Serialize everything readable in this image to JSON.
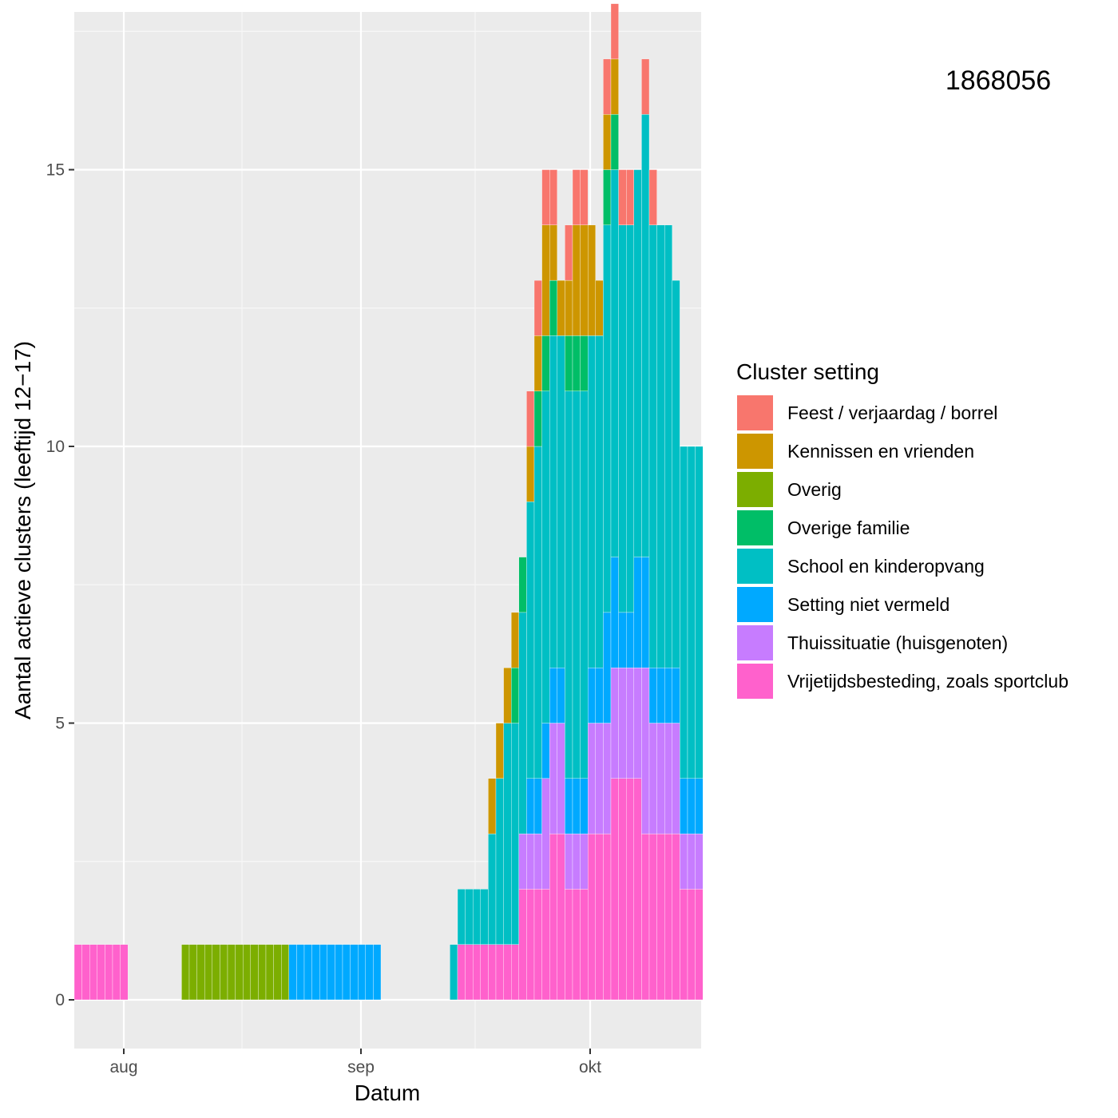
{
  "chart_data": {
    "type": "bar",
    "stacked": true,
    "xlabel": "Datum",
    "ylabel": "Aantal actieve clusters (leeftijd 12−17)",
    "annotation": "1868056",
    "x_tick_labels": [
      "aug",
      "sep",
      "okt"
    ],
    "y_ticks": [
      0,
      5,
      10,
      15
    ],
    "legend_title": "Cluster setting",
    "legend_position": "right",
    "grid": true,
    "categories": [
      "07-26",
      "07-27",
      "07-28",
      "07-29",
      "07-30",
      "07-31",
      "07-32",
      "08-02",
      "08-03",
      "08-04",
      "08-05",
      "08-06",
      "08-07",
      "08-08",
      "08-09",
      "08-10",
      "08-11",
      "08-12",
      "08-13",
      "08-14",
      "08-15",
      "08-16",
      "08-17",
      "08-18",
      "08-19",
      "08-20",
      "08-21",
      "08-22",
      "08-23",
      "08-24",
      "08-25",
      "08-26",
      "08-27",
      "08-28",
      "08-29",
      "08-30",
      "08-31",
      "09-01",
      "09-02",
      "09-03",
      "09-04",
      "09-05",
      "09-06",
      "09-07",
      "09-08",
      "09-09",
      "09-10",
      "09-11",
      "09-12",
      "09-13",
      "09-14",
      "09-15",
      "09-16",
      "09-17",
      "09-18",
      "09-19",
      "09-20",
      "09-21",
      "09-22",
      "09-23",
      "09-24",
      "09-25",
      "09-26",
      "09-27",
      "09-28",
      "09-29",
      "09-30",
      "10-01",
      "10-02",
      "10-03",
      "10-04",
      "10-05",
      "10-06",
      "10-07",
      "10-08",
      "10-09",
      "10-10",
      "10-11",
      "10-12",
      "10-13",
      "10-14",
      "10-15"
    ],
    "series": [
      {
        "name": "Feest / verjaardag / borrel",
        "color": "#F8766D",
        "values": [
          0,
          0,
          0,
          0,
          0,
          0,
          0,
          0,
          0,
          0,
          0,
          0,
          0,
          0,
          0,
          0,
          0,
          0,
          0,
          0,
          0,
          0,
          0,
          0,
          0,
          0,
          0,
          0,
          0,
          0,
          0,
          0,
          0,
          0,
          0,
          0,
          0,
          0,
          0,
          0,
          0,
          0,
          0,
          0,
          0,
          0,
          0,
          0,
          0,
          0,
          0,
          0,
          0,
          0,
          0,
          0,
          0,
          0,
          0,
          1,
          1,
          1,
          1,
          0,
          1,
          1,
          1,
          0,
          0,
          1,
          1,
          1,
          1,
          0,
          1,
          1,
          0,
          0,
          0,
          0,
          0,
          0
        ]
      },
      {
        "name": "Kennissen en vrienden",
        "color": "#CD9600",
        "values": [
          0,
          0,
          0,
          0,
          0,
          0,
          0,
          0,
          0,
          0,
          0,
          0,
          0,
          0,
          0,
          0,
          0,
          0,
          0,
          0,
          0,
          0,
          0,
          0,
          0,
          0,
          0,
          0,
          0,
          0,
          0,
          0,
          0,
          0,
          0,
          0,
          0,
          0,
          0,
          0,
          0,
          0,
          0,
          0,
          0,
          0,
          0,
          0,
          0,
          0,
          0,
          0,
          0,
          0,
          1,
          1,
          1,
          1,
          0,
          1,
          1,
          2,
          1,
          1,
          1,
          2,
          2,
          2,
          1,
          1,
          1,
          0,
          0,
          0,
          0,
          0,
          0,
          0,
          0,
          0,
          0,
          0
        ]
      },
      {
        "name": "Overig",
        "color": "#7CAE00",
        "values": [
          0,
          0,
          0,
          0,
          0,
          0,
          0,
          0,
          0,
          0,
          0,
          0,
          0,
          0,
          1,
          1,
          1,
          1,
          1,
          1,
          1,
          1,
          1,
          1,
          1,
          1,
          1,
          1,
          0,
          0,
          0,
          0,
          0,
          0,
          0,
          0,
          0,
          0,
          0,
          0,
          0,
          0,
          0,
          0,
          0,
          0,
          0,
          0,
          0,
          0,
          0,
          0,
          0,
          0,
          0,
          0,
          0,
          0,
          0,
          0,
          0,
          0,
          0,
          0,
          0,
          0,
          0,
          0,
          0,
          0,
          0,
          0,
          0,
          0,
          0,
          0,
          0,
          0,
          0,
          0,
          0,
          0
        ]
      },
      {
        "name": "Overige familie",
        "color": "#00BE67",
        "values": [
          0,
          0,
          0,
          0,
          0,
          0,
          0,
          0,
          0,
          0,
          0,
          0,
          0,
          0,
          0,
          0,
          0,
          0,
          0,
          0,
          0,
          0,
          0,
          0,
          0,
          0,
          0,
          0,
          0,
          0,
          0,
          0,
          0,
          0,
          0,
          0,
          0,
          0,
          0,
          0,
          0,
          0,
          0,
          0,
          0,
          0,
          0,
          0,
          0,
          0,
          0,
          0,
          0,
          0,
          0,
          0,
          0,
          1,
          1,
          0,
          1,
          1,
          1,
          0,
          1,
          1,
          1,
          0,
          0,
          1,
          1,
          0,
          0,
          0,
          0,
          0,
          0,
          0,
          0,
          0,
          0,
          0
        ]
      },
      {
        "name": "School en kinderopvang",
        "color": "#00BFC4",
        "values": [
          0,
          0,
          0,
          0,
          0,
          0,
          0,
          0,
          0,
          0,
          0,
          0,
          0,
          0,
          0,
          0,
          0,
          0,
          0,
          0,
          0,
          0,
          0,
          0,
          0,
          0,
          0,
          0,
          0,
          0,
          0,
          0,
          0,
          0,
          0,
          0,
          0,
          0,
          0,
          0,
          0,
          0,
          0,
          0,
          0,
          0,
          0,
          0,
          0,
          1,
          1,
          1,
          1,
          1,
          2,
          3,
          4,
          4,
          4,
          5,
          6,
          6,
          6,
          6,
          7,
          7,
          7,
          6,
          6,
          7,
          7,
          7,
          7,
          7,
          8,
          8,
          8,
          8,
          7,
          6,
          6,
          6
        ]
      },
      {
        "name": "Setting niet vermeld",
        "color": "#00A9FF",
        "values": [
          0,
          0,
          0,
          0,
          0,
          0,
          0,
          0,
          0,
          0,
          0,
          0,
          0,
          0,
          0,
          0,
          0,
          0,
          0,
          0,
          0,
          0,
          0,
          0,
          0,
          0,
          0,
          0,
          1,
          1,
          1,
          1,
          1,
          1,
          1,
          1,
          1,
          1,
          1,
          1,
          0,
          0,
          0,
          0,
          0,
          0,
          0,
          0,
          0,
          0,
          0,
          0,
          0,
          0,
          0,
          0,
          0,
          0,
          0,
          1,
          1,
          1,
          1,
          1,
          1,
          1,
          1,
          1,
          1,
          2,
          2,
          1,
          1,
          2,
          2,
          1,
          1,
          1,
          1,
          1,
          1,
          1
        ]
      },
      {
        "name": "Thuissituatie (huisgenoten)",
        "color": "#C77CFF",
        "values": [
          0,
          0,
          0,
          0,
          0,
          0,
          0,
          0,
          0,
          0,
          0,
          0,
          0,
          0,
          0,
          0,
          0,
          0,
          0,
          0,
          0,
          0,
          0,
          0,
          0,
          0,
          0,
          0,
          0,
          0,
          0,
          0,
          0,
          0,
          0,
          0,
          0,
          0,
          0,
          0,
          0,
          0,
          0,
          0,
          0,
          0,
          0,
          0,
          0,
          0,
          0,
          0,
          0,
          0,
          0,
          0,
          0,
          0,
          1,
          1,
          1,
          2,
          2,
          2,
          1,
          1,
          1,
          2,
          2,
          2,
          2,
          2,
          2,
          2,
          3,
          2,
          2,
          2,
          2,
          1,
          1,
          1
        ]
      },
      {
        "name": "Vrijetijdsbesteding, zoals sportclub",
        "color": "#FF61CC",
        "values": [
          1,
          1,
          1,
          1,
          1,
          1,
          1,
          0,
          0,
          0,
          0,
          0,
          0,
          0,
          0,
          0,
          0,
          0,
          0,
          0,
          0,
          0,
          0,
          0,
          0,
          0,
          0,
          0,
          0,
          0,
          0,
          0,
          0,
          0,
          0,
          0,
          0,
          0,
          0,
          0,
          0,
          0,
          0,
          0,
          0,
          0,
          0,
          0,
          0,
          0,
          1,
          1,
          1,
          1,
          1,
          1,
          1,
          1,
          2,
          2,
          2,
          2,
          3,
          3,
          2,
          2,
          2,
          3,
          3,
          3,
          4,
          4,
          4,
          4,
          3,
          3,
          3,
          3,
          3,
          2,
          2,
          2
        ]
      }
    ]
  }
}
